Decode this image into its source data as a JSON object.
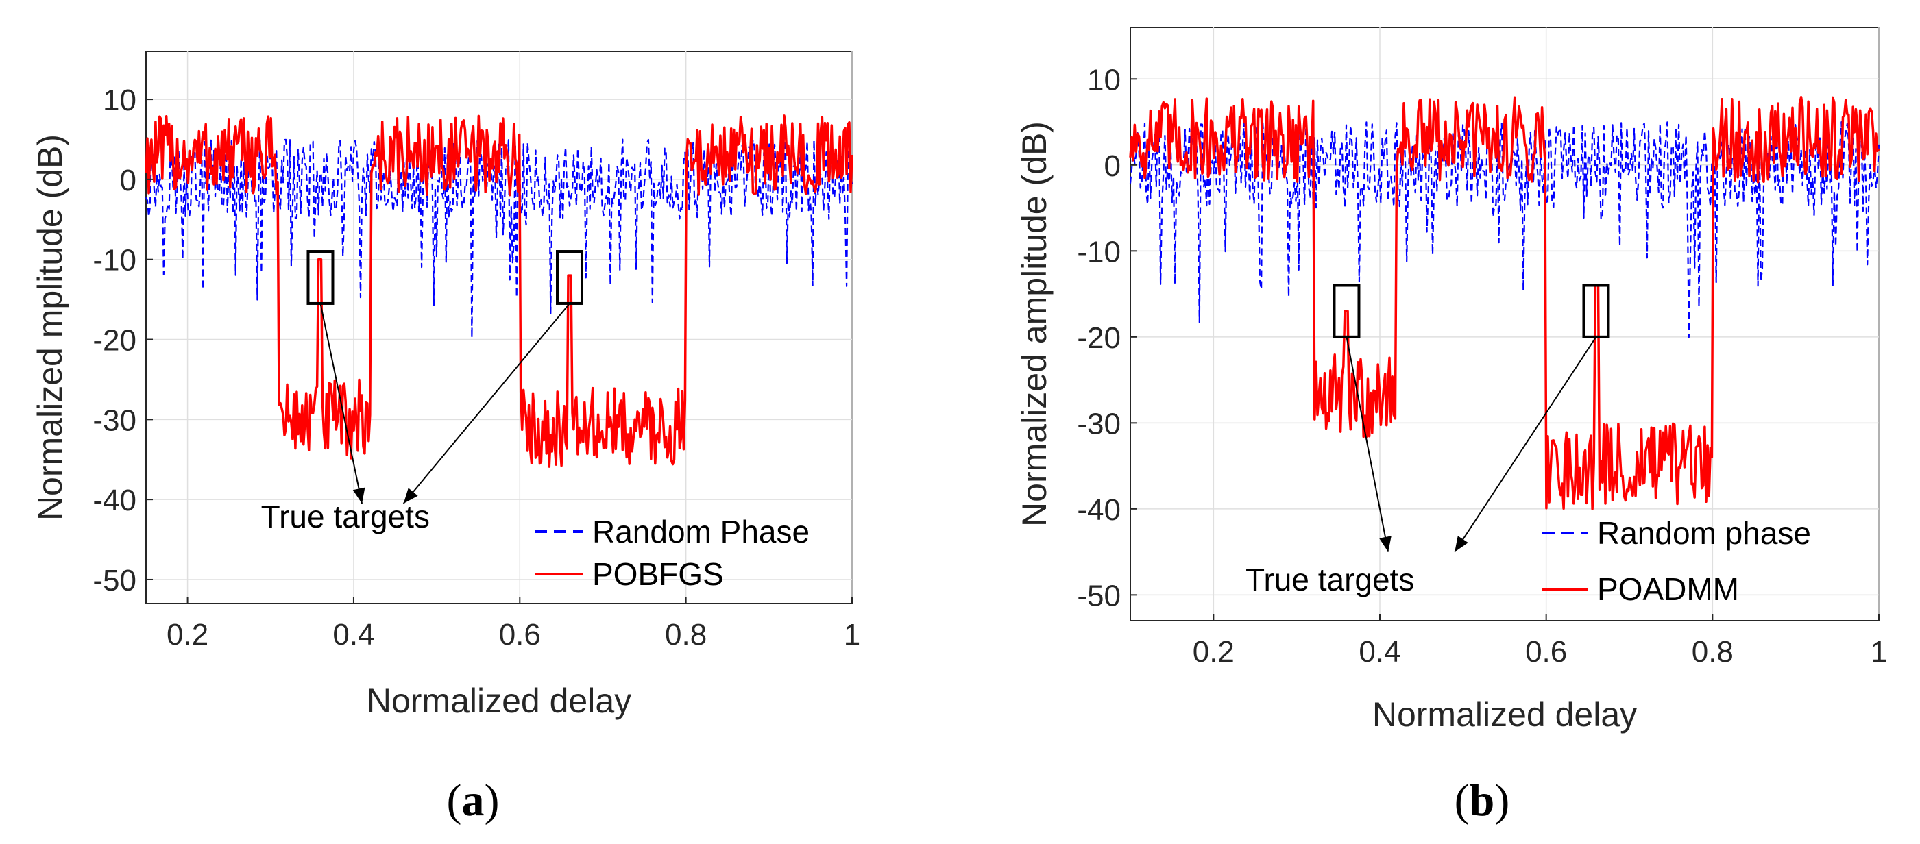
{
  "chart_data": [
    {
      "panel": "a",
      "caption": "(a)",
      "caption_letter": "a",
      "type": "line",
      "xlabel": "Normalized delay",
      "ylabel": "Normalized mplitude (dB)",
      "xlim": [
        0.15,
        1.0
      ],
      "ylim": [
        -53,
        16
      ],
      "xticks": [
        0.2,
        0.4,
        0.6,
        0.8,
        1.0
      ],
      "xtick_labels": [
        "0.2",
        "0.4",
        "0.6",
        "0.8",
        "1"
      ],
      "yticks": [
        10,
        0,
        -10,
        -20,
        -30,
        -40,
        -50
      ],
      "ytick_labels": [
        "10",
        "0",
        "-10",
        "-20",
        "-30",
        "-40",
        "-50"
      ],
      "grid": true,
      "legend": {
        "position": "bottom-right",
        "entries": [
          "Random Phase",
          "POBFGS"
        ]
      },
      "annotation": {
        "text": "True targets",
        "targets_x": [
          0.36,
          0.66
        ],
        "box_y": [
          -15.5,
          -9.0
        ],
        "arrow_end": [
          [
            0.41,
            -40.5
          ],
          [
            0.46,
            -40.5
          ]
        ],
        "text_pos": [
          0.39,
          -43.5
        ]
      },
      "series": [
        {
          "name": "Random Phase",
          "color": "#0000ff",
          "dash": "dashed",
          "baseline": 0,
          "noise": 5,
          "dips": []
        },
        {
          "name": "POBFGS",
          "color": "#ff0000",
          "dash": "solid",
          "baseline": 3,
          "noise": 5,
          "dips": [
            {
              "from": 0.31,
              "to": 0.42,
              "level": -30
            },
            {
              "from": 0.6,
              "to": 0.8,
              "level": -31
            }
          ],
          "peaks": [
            {
              "x": 0.36,
              "value": -10
            },
            {
              "x": 0.66,
              "value": -12
            }
          ]
        }
      ]
    },
    {
      "panel": "b",
      "caption": "(b)",
      "caption_letter": "b",
      "type": "line",
      "xlabel": "Normalized delay",
      "ylabel": "Normalized amplitude (dB)",
      "xlim": [
        0.1,
        1.0
      ],
      "ylim": [
        -53,
        16
      ],
      "xticks": [
        0.2,
        0.4,
        0.6,
        0.8,
        1.0
      ],
      "xtick_labels": [
        "0.2",
        "0.4",
        "0.6",
        "0.8",
        "1"
      ],
      "yticks": [
        10,
        0,
        -10,
        -20,
        -30,
        -40,
        -50
      ],
      "ytick_labels": [
        "10",
        "0",
        "-10",
        "-20",
        "-30",
        "-40",
        "-50"
      ],
      "grid": true,
      "legend": {
        "position": "bottom-right",
        "entries": [
          "Random phase",
          "POADMM"
        ]
      },
      "annotation": {
        "text": "True targets",
        "targets_x": [
          0.36,
          0.66
        ],
        "box_y": [
          -20.0,
          -14.0
        ],
        "arrow_end": [
          [
            0.41,
            -45
          ],
          [
            0.49,
            -45
          ]
        ],
        "text_pos": [
          0.34,
          -49.5
        ]
      },
      "series": [
        {
          "name": "Random phase",
          "color": "#0000ff",
          "dash": "dashed",
          "baseline": 0,
          "noise": 5,
          "dips": []
        },
        {
          "name": "POADMM",
          "color": "#ff0000",
          "dash": "solid",
          "baseline": 3,
          "noise": 5,
          "dips": [
            {
              "from": 0.32,
              "to": 0.42,
              "level": -27
            },
            {
              "from": 0.6,
              "to": 0.8,
              "level": -35
            }
          ],
          "peaks": [
            {
              "x": 0.36,
              "value": -17
            },
            {
              "x": 0.66,
              "value": -14
            }
          ]
        }
      ]
    }
  ]
}
